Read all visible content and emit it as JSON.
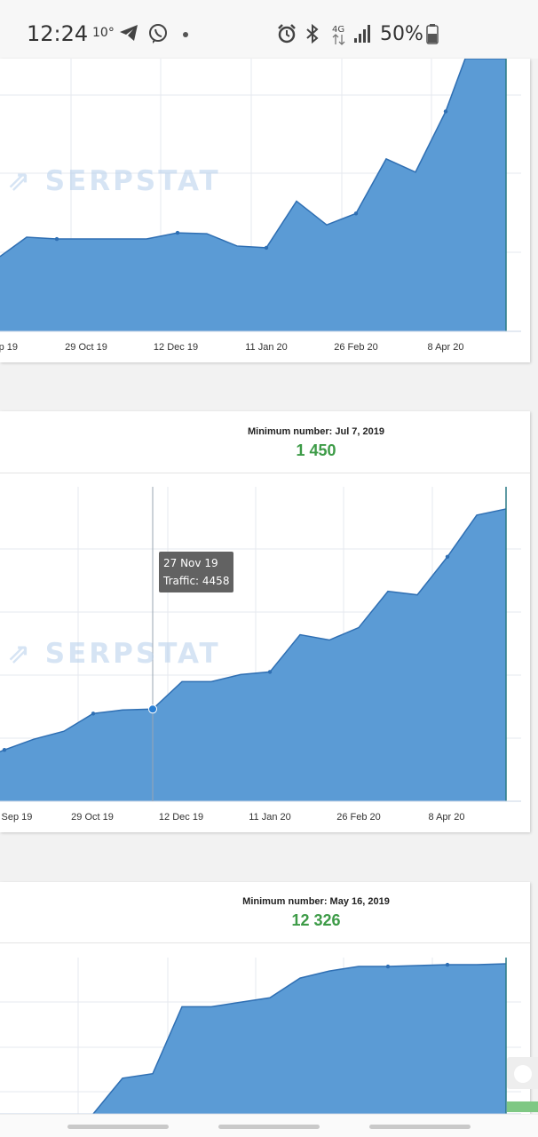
{
  "status_bar": {
    "time": "12:24",
    "temperature": "10°",
    "battery_percent": "50%"
  },
  "watermark_text": "SERPSTAT",
  "colors": {
    "area_fill": "#5b9bd5",
    "area_line": "#2f6fb3",
    "positive_value": "#3d9b47"
  },
  "card1": {
    "chart_data": {
      "type": "area",
      "x_ticks": [
        "p 19",
        "29 Oct 19",
        "12 Dec 19",
        "11 Jan 20",
        "26 Feb 20",
        "8 Apr 20"
      ],
      "note": "values in relative units, top of plot is clipped",
      "x": [
        0,
        30,
        64,
        97,
        130,
        165,
        200,
        233,
        267,
        300,
        334,
        368,
        401,
        435,
        468,
        502,
        524,
        570
      ],
      "values": [
        85,
        107,
        105,
        105,
        105,
        105,
        112,
        111,
        97,
        95,
        148,
        121,
        134,
        196,
        181,
        250,
        310,
        310
      ],
      "ylim": [
        0,
        310
      ]
    }
  },
  "card2": {
    "min_label": "Minimum number: Jul 7, 2019",
    "min_value": "1 450",
    "tooltip": {
      "date": "27 Nov 19",
      "traffic": "Traffic: 4458"
    },
    "chart_data": {
      "type": "area",
      "x_ticks": [
        "Sep 19",
        "29 Oct 19",
        "12 Dec 19",
        "11 Jan 20",
        "26 Feb 20",
        "8 Apr 20"
      ],
      "x": [
        0,
        5,
        38,
        72,
        105,
        138,
        172,
        205,
        238,
        271,
        304,
        338,
        371,
        404,
        437,
        470,
        504,
        537,
        570
      ],
      "values": [
        56,
        58,
        70,
        79,
        99,
        103,
        104,
        135,
        135,
        143,
        146,
        188,
        182,
        196,
        237,
        233,
        276,
        323,
        330
      ],
      "ylim": [
        0,
        355
      ]
    }
  },
  "card3": {
    "min_label": "Minimum number: May 16, 2019",
    "min_value": "12 326",
    "chart_data": {
      "type": "area",
      "x": [
        105,
        138,
        172,
        205,
        238,
        271,
        304,
        338,
        371,
        404,
        437,
        470,
        504,
        537,
        570
      ],
      "values": [
        0,
        40,
        45,
        120,
        120,
        125,
        130,
        152,
        160,
        165,
        165,
        166,
        167,
        167,
        168
      ],
      "ylim": [
        0,
        175
      ]
    }
  }
}
